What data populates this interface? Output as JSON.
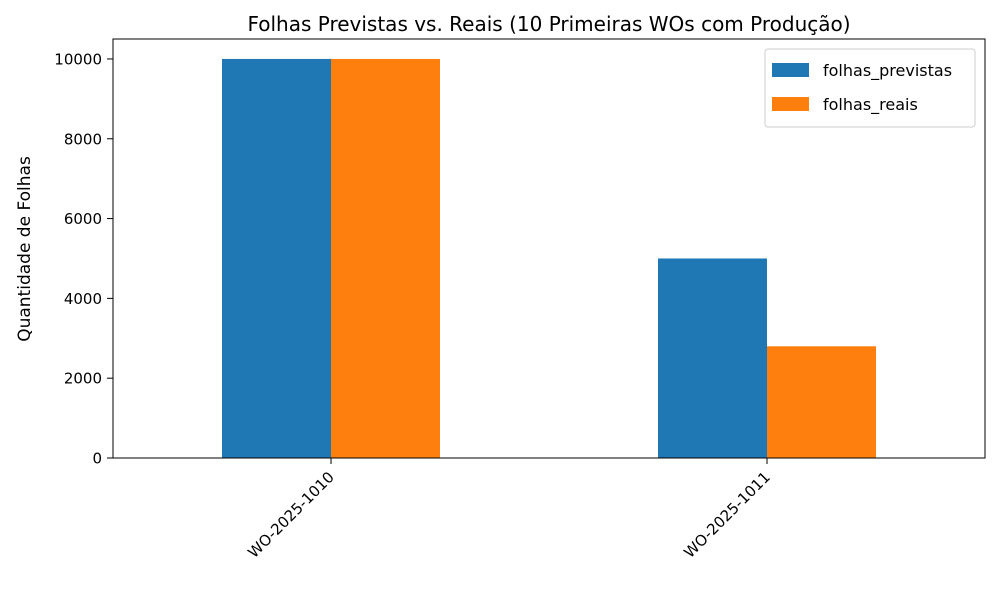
{
  "chart_data": {
    "type": "bar",
    "title": "Folhas Previstas vs. Reais (10 Primeiras WOs com Produção)",
    "xlabel": "",
    "ylabel": "Quantidade de Folhas",
    "categories": [
      "WO-2025-1010",
      "WO-2025-1011"
    ],
    "series": [
      {
        "name": "folhas_previstas",
        "values": [
          10000,
          5000
        ],
        "color": "#1f77b4"
      },
      {
        "name": "folhas_reais",
        "values": [
          10000,
          2800
        ],
        "color": "#ff7f0e"
      }
    ],
    "ylim": [
      0,
      10500
    ],
    "yticks": [
      0,
      2000,
      4000,
      6000,
      8000,
      10000
    ],
    "ytick_labels": [
      "0",
      "2000",
      "4000",
      "6000",
      "8000",
      "10000"
    ],
    "grid": false,
    "legend_position": "top-right"
  }
}
